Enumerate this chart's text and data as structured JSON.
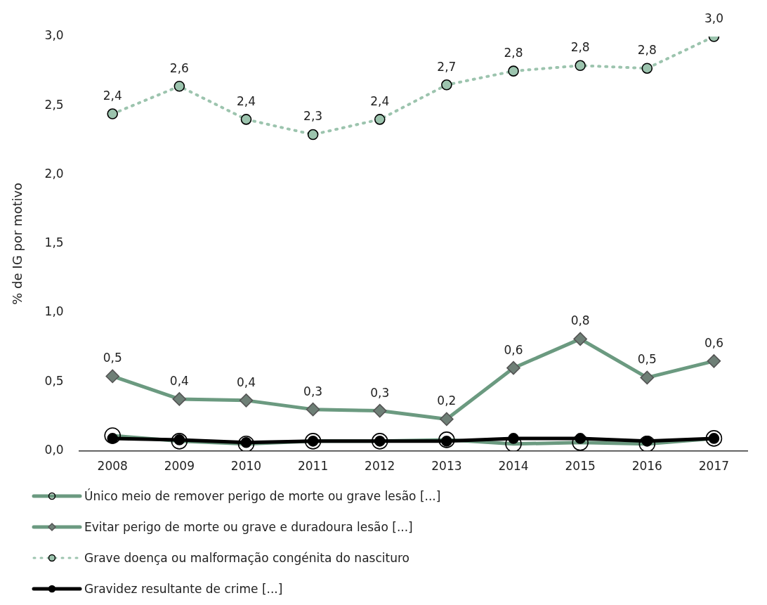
{
  "chart_data": {
    "type": "line",
    "ylabel": "% de IG por motivo",
    "categories": [
      "2008",
      "2009",
      "2010",
      "2011",
      "2012",
      "2013",
      "2014",
      "2015",
      "2016",
      "2017"
    ],
    "ylim": [
      0,
      3.0
    ],
    "yticks": [
      {
        "value": 0,
        "label": "0,0"
      },
      {
        "value": 0.5,
        "label": "0,5"
      },
      {
        "value": 1,
        "label": "1,0"
      },
      {
        "value": 1.5,
        "label": "1,5"
      },
      {
        "value": 2,
        "label": "2,0"
      },
      {
        "value": 2.5,
        "label": "2,5"
      },
      {
        "value": 3,
        "label": "3,0"
      }
    ],
    "grid": false,
    "legend": "bottom",
    "series": [
      {
        "name": "Único meio de remover perigo de morte ou grave lesão [...]",
        "color": "#6b9a80",
        "marker": "circle",
        "line_style": "solid",
        "values": [
          0.11,
          0.07,
          0.05,
          0.07,
          0.07,
          0.08,
          0.05,
          0.06,
          0.05,
          0.09
        ]
      },
      {
        "name": "Evitar perigo de morte ou grave e duradoura lesão [...]",
        "color": "#6b9a80",
        "marker": "diamond",
        "line_style": "solid",
        "values": [
          0.54,
          0.375,
          0.365,
          0.3,
          0.29,
          0.23,
          0.6,
          0.81,
          0.53,
          0.65
        ],
        "value_labels": [
          "0,5",
          "0,4",
          "0,4",
          "0,3",
          "0,3",
          "0,2",
          "0,6",
          "0,8",
          "0,5",
          "0,6"
        ]
      },
      {
        "name": "Grave doença ou malformação congénita do nascituro",
        "color": "#9cc4ae",
        "marker": "circle",
        "line_style": "dotted",
        "values": [
          2.44,
          2.64,
          2.4,
          2.29,
          2.4,
          2.65,
          2.75,
          2.79,
          2.77,
          3.0
        ],
        "value_labels": [
          "2,4",
          "2,6",
          "2,4",
          "2,3",
          "2,4",
          "2,7",
          "2,8",
          "2,8",
          "2,8",
          "3,0"
        ]
      },
      {
        "name": "Gravidez resultante de crime [...]",
        "color": "#000000",
        "marker": "circle",
        "line_style": "solid",
        "values": [
          0.09,
          0.08,
          0.06,
          0.07,
          0.07,
          0.07,
          0.09,
          0.09,
          0.07,
          0.09
        ]
      }
    ]
  }
}
